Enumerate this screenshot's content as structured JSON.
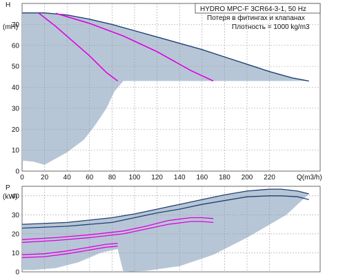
{
  "info": {
    "model": "HYDRO MPC-F 3CR64-3-1, 50 Hz",
    "note1": "Потеря в фитингах и клапанах",
    "note2": "Плотность = 1000 kg/m3"
  },
  "chart_data": [
    {
      "type": "line",
      "ylabel_top": "H",
      "ylabel_unit": "(mH)",
      "xlabel": "Q(m3/h)",
      "xlim": [
        0,
        265
      ],
      "ylim": [
        0,
        80
      ],
      "xticks": [
        "0",
        "20",
        "40",
        "60",
        "80",
        "100",
        "120",
        "140",
        "160",
        "180",
        "200",
        "220"
      ],
      "yticks": [
        "0",
        "10",
        "20",
        "30",
        "40",
        "50",
        "60",
        "70"
      ],
      "grid": true,
      "series": [
        {
          "role": "max-curve",
          "color": "#1f3f73",
          "x": [
            0,
            20,
            40,
            60,
            80,
            100,
            120,
            140,
            160,
            180,
            200,
            220,
            240,
            255
          ],
          "y": [
            75.5,
            75.5,
            74.5,
            72.5,
            70,
            67,
            64,
            61,
            58,
            54.5,
            51,
            47.5,
            44.5,
            43
          ]
        },
        {
          "role": "system-curve-1",
          "color": "#e000e0",
          "x": [
            15,
            30,
            45,
            60,
            75,
            85
          ],
          "y": [
            75.3,
            69,
            62,
            55,
            47,
            43
          ]
        },
        {
          "role": "system-curve-2",
          "color": "#e000e0",
          "x": [
            30,
            60,
            90,
            120,
            150,
            170
          ],
          "y": [
            75.3,
            70.5,
            64.5,
            57,
            48,
            43
          ]
        },
        {
          "role": "operating-area",
          "color": "#b7c6d6",
          "x": [
            0,
            20,
            40,
            60,
            80,
            100,
            120,
            140,
            160,
            180,
            200,
            220,
            240,
            255,
            240,
            200,
            160,
            120,
            90,
            82,
            75,
            65,
            55,
            40,
            30,
            20,
            10,
            0
          ],
          "y": [
            75.5,
            75.5,
            74.5,
            72.5,
            70,
            67,
            64,
            61,
            58,
            54.5,
            51,
            47.5,
            44.5,
            43,
            43,
            43,
            43,
            43,
            43,
            38,
            30,
            22,
            15,
            9,
            6,
            3,
            4.5,
            5
          ]
        }
      ]
    },
    {
      "type": "line",
      "ylabel_top": "P",
      "ylabel_unit": "(kW)",
      "xlim": [
        0,
        265
      ],
      "ylim": [
        0,
        45
      ],
      "yticks": [
        "0",
        "10",
        "20",
        "30",
        "40"
      ],
      "grid": true,
      "series": [
        {
          "role": "p1-max",
          "color": "#1f3f73",
          "x": [
            0,
            40,
            80,
            100,
            120,
            140,
            160,
            180,
            200,
            220,
            230,
            245,
            255
          ],
          "y": [
            25,
            26,
            28.5,
            30.5,
            33,
            35.5,
            38,
            40.5,
            42.5,
            43.5,
            43.5,
            42.5,
            41
          ]
        },
        {
          "role": "p2-max",
          "color": "#1f3f73",
          "x": [
            0,
            40,
            80,
            100,
            120,
            140,
            160,
            180,
            200,
            220,
            230,
            245,
            255
          ],
          "y": [
            23,
            24,
            26,
            28.5,
            31,
            33,
            35.5,
            37.5,
            39.5,
            40,
            40,
            39.5,
            38
          ]
        },
        {
          "role": "p1-curve-2",
          "color": "#e000e0",
          "x": [
            0,
            30,
            60,
            90,
            110,
            130,
            150,
            160,
            170
          ],
          "y": [
            17,
            18,
            19.5,
            21.5,
            24,
            27,
            28.5,
            28.5,
            28
          ]
        },
        {
          "role": "p2-curve-2",
          "color": "#e000e0",
          "x": [
            0,
            30,
            60,
            90,
            110,
            130,
            150,
            160,
            170
          ],
          "y": [
            15.5,
            16.5,
            18,
            20,
            22.5,
            25,
            26.5,
            26.5,
            26
          ]
        },
        {
          "role": "p1-curve-1",
          "color": "#e000e0",
          "x": [
            0,
            20,
            40,
            60,
            75,
            85
          ],
          "y": [
            9,
            9.5,
            11,
            13,
            14.5,
            15
          ]
        },
        {
          "role": "p2-curve-1",
          "color": "#e000e0",
          "x": [
            0,
            20,
            40,
            60,
            75,
            85
          ],
          "y": [
            7.5,
            8,
            9.5,
            11.5,
            13,
            13.5
          ]
        },
        {
          "role": "power-area",
          "color": "#b7c6d6",
          "x": [
            0,
            40,
            80,
            100,
            120,
            140,
            160,
            180,
            200,
            220,
            230,
            245,
            255,
            235,
            200,
            170,
            140,
            110,
            90,
            85,
            70,
            50,
            30,
            10,
            0
          ],
          "y": [
            25,
            26,
            28.5,
            30.5,
            33,
            35.5,
            38,
            40.5,
            42.5,
            43.5,
            43.5,
            42.5,
            41,
            30,
            18,
            9,
            3,
            0.5,
            0,
            12,
            10,
            5,
            2,
            1,
            1
          ]
        }
      ]
    }
  ]
}
